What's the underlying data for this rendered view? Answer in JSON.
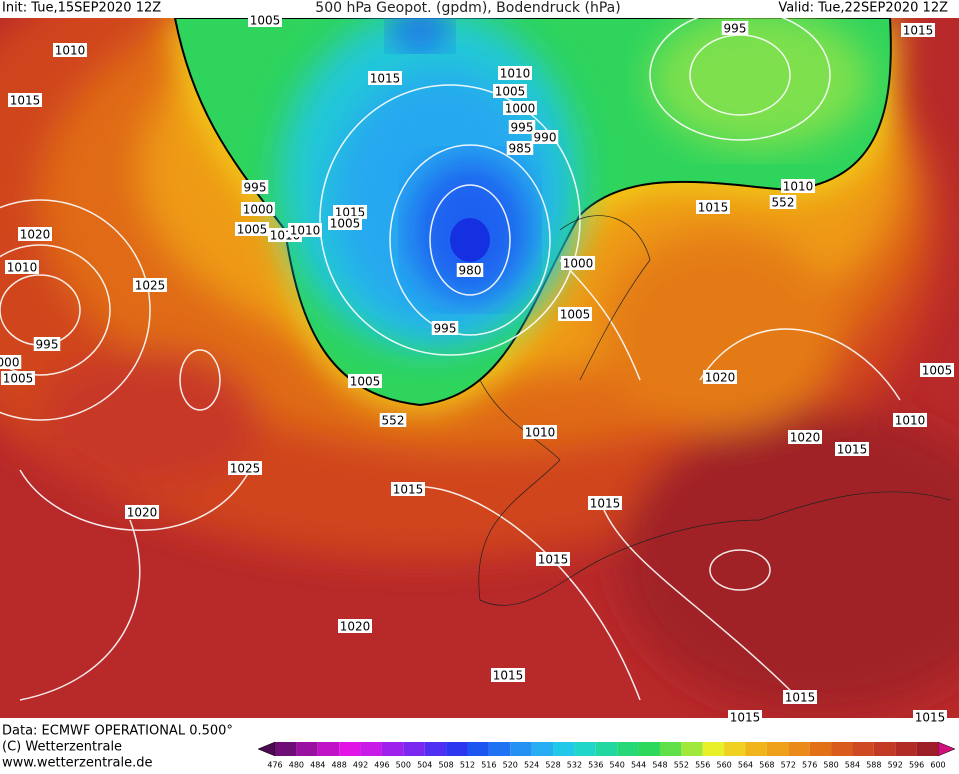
{
  "header": {
    "init": "Init: Tue,15SEP2020 12Z",
    "title": "500 hPa Geopot. (gpdm), Bodendruck (hPa)",
    "valid": "Valid: Tue,22SEP2020 12Z"
  },
  "isobar_labels": [
    1005,
    1010,
    1015,
    1015,
    1010,
    1005,
    1000,
    995,
    990,
    985,
    995,
    1000,
    1005,
    1010,
    1010,
    1015,
    1005,
    1020,
    1010,
    1025,
    980,
    1000,
    1005,
    995,
    995,
    "000",
    1005,
    1005,
    552,
    1010,
    995,
    1015,
    1010,
    552,
    1015,
    1020,
    1005,
    1010,
    1020,
    1015,
    1025,
    1015,
    1015,
    1020,
    1015,
    1020,
    1015,
    1015,
    1015,
    1015
  ],
  "footer": {
    "data": "Data: ECMWF OPERATIONAL 0.500°",
    "copyright": "(C) Wetterzentrale",
    "url": "www.wetterzentrale.de"
  },
  "colorbar": {
    "ticks": [
      476,
      480,
      484,
      488,
      492,
      496,
      500,
      504,
      508,
      512,
      516,
      520,
      524,
      528,
      532,
      536,
      540,
      544,
      548,
      552,
      556,
      560,
      564,
      568,
      572,
      576,
      580,
      584,
      588,
      592,
      596,
      600
    ],
    "colors": [
      "#4b0a4f",
      "#6e0d75",
      "#9a10a0",
      "#c012c6",
      "#e015e6",
      "#c81be8",
      "#9f22ec",
      "#7a28f0",
      "#4f2ff2",
      "#2c36f0",
      "#1d55f0",
      "#1f72f2",
      "#2390f2",
      "#27aef2",
      "#22c8e8",
      "#1fd6c8",
      "#22d8a0",
      "#26d878",
      "#2ed85a",
      "#60e048",
      "#a0e83c",
      "#e8f028",
      "#f0d020",
      "#f0b41c",
      "#eea01a",
      "#ea8a18",
      "#e27016",
      "#da5c1c",
      "#cf4a22",
      "#c23a24",
      "#b22c26",
      "#9c1e26",
      "#d0107a"
    ]
  }
}
